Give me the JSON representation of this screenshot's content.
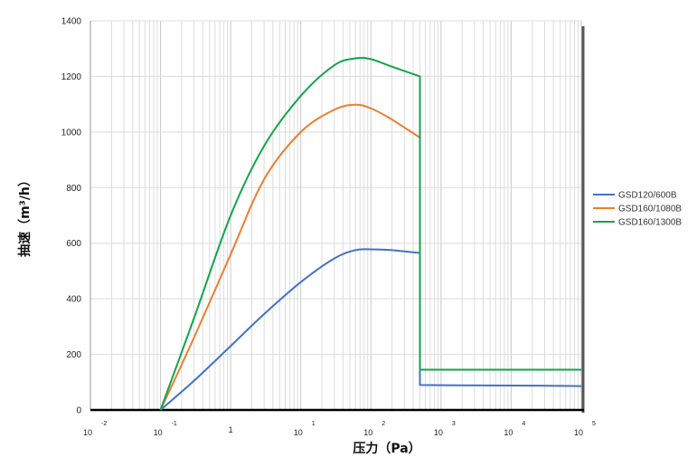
{
  "chart_data": {
    "type": "line",
    "xlabel": "压力（Pa）",
    "ylabel": "抽速（m³/h）",
    "xscale": "log",
    "xlim": [
      0.01,
      100000
    ],
    "ylim": [
      0,
      1400
    ],
    "yticks": [
      0,
      200,
      400,
      600,
      800,
      1000,
      1200,
      1400
    ],
    "xticks": [
      {
        "base": "10",
        "exp": "-2"
      },
      {
        "base": "10",
        "exp": "-1"
      },
      {
        "base": "1",
        "exp": ""
      },
      {
        "base": "10",
        "exp": "1"
      },
      {
        "base": "10",
        "exp": "2"
      },
      {
        "base": "10",
        "exp": "3"
      },
      {
        "base": "10",
        "exp": "4"
      },
      {
        "base": "10",
        "exp": "5"
      }
    ],
    "grid": true,
    "legend_position": "right",
    "series": [
      {
        "name": "GSD120/600B",
        "color": "#4472c4",
        "x": [
          0.1,
          0.3,
          1,
          3,
          10,
          30,
          60,
          100,
          200,
          500,
          500,
          1000,
          10000,
          100000
        ],
        "y": [
          0,
          105,
          230,
          345,
          460,
          545,
          575,
          578,
          575,
          565,
          90,
          89,
          88,
          86
        ]
      },
      {
        "name": "GSD160/1080B",
        "color": "#ed7d31",
        "x": [
          0.1,
          0.3,
          1,
          3,
          10,
          30,
          60,
          100,
          200,
          500,
          500,
          1000,
          10000,
          100000
        ],
        "y": [
          0,
          260,
          560,
          830,
          1000,
          1080,
          1098,
          1085,
          1045,
          980,
          145,
          145,
          145,
          145
        ]
      },
      {
        "name": "GSD160/1300B",
        "color": "#12a54a",
        "x": [
          0.1,
          0.3,
          1,
          3,
          10,
          30,
          60,
          100,
          200,
          500,
          500,
          1000,
          10000,
          100000
        ],
        "y": [
          0,
          330,
          700,
          950,
          1130,
          1240,
          1265,
          1262,
          1235,
          1200,
          145,
          145,
          145,
          145
        ]
      }
    ]
  }
}
